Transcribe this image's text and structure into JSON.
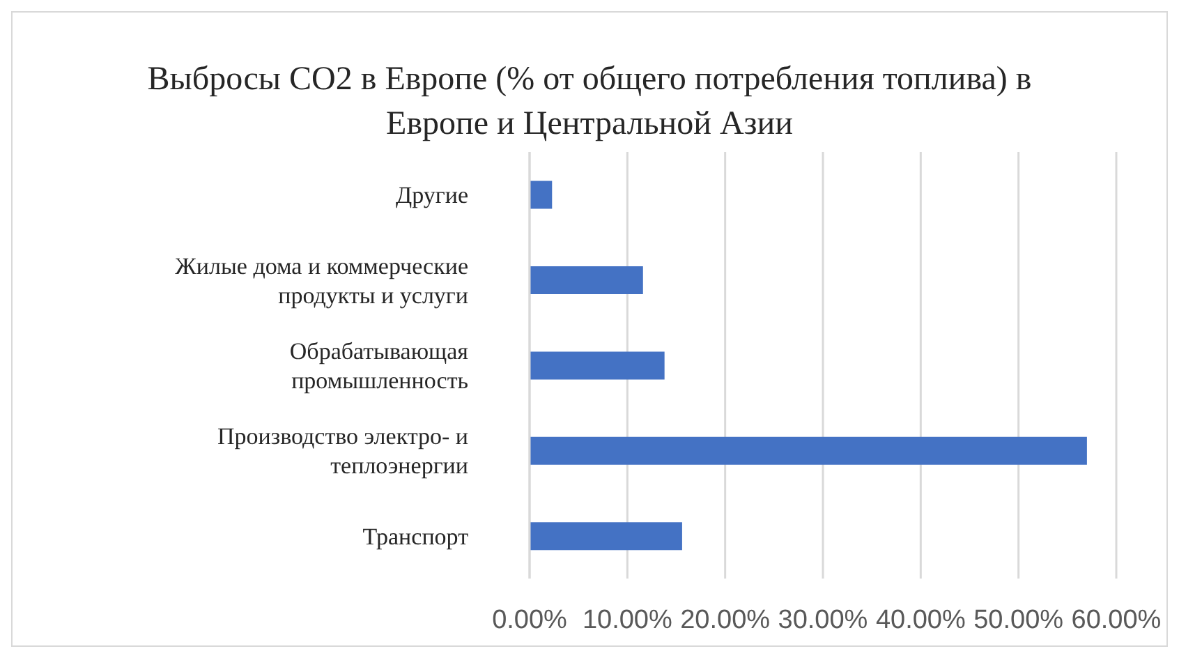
{
  "chart_data": {
    "type": "bar",
    "orientation": "horizontal",
    "title": "Выбросы CO2 в Европе (% от общего потребления топлива) в Европе и Центральной Азии",
    "categories": [
      "Другие",
      "Жилые дома и коммерческие продукты и услуги",
      "Обрабатывающая промышленность",
      "Производство электро- и теплоэнергии",
      "Транспорт"
    ],
    "values": [
      2.3,
      11.6,
      13.8,
      57.0,
      15.6
    ],
    "color": "#4472c4",
    "xlim": [
      0,
      60
    ],
    "xticks": [
      {
        "value": 0,
        "label": "0.00%"
      },
      {
        "value": 10,
        "label": "10.00%"
      },
      {
        "value": 20,
        "label": "20.00%"
      },
      {
        "value": 30,
        "label": "30.00%"
      },
      {
        "value": 40,
        "label": "40.00%"
      },
      {
        "value": 50,
        "label": "50.00%"
      },
      {
        "value": 60,
        "label": "60.00%"
      }
    ],
    "grid": "x",
    "legend": false
  }
}
